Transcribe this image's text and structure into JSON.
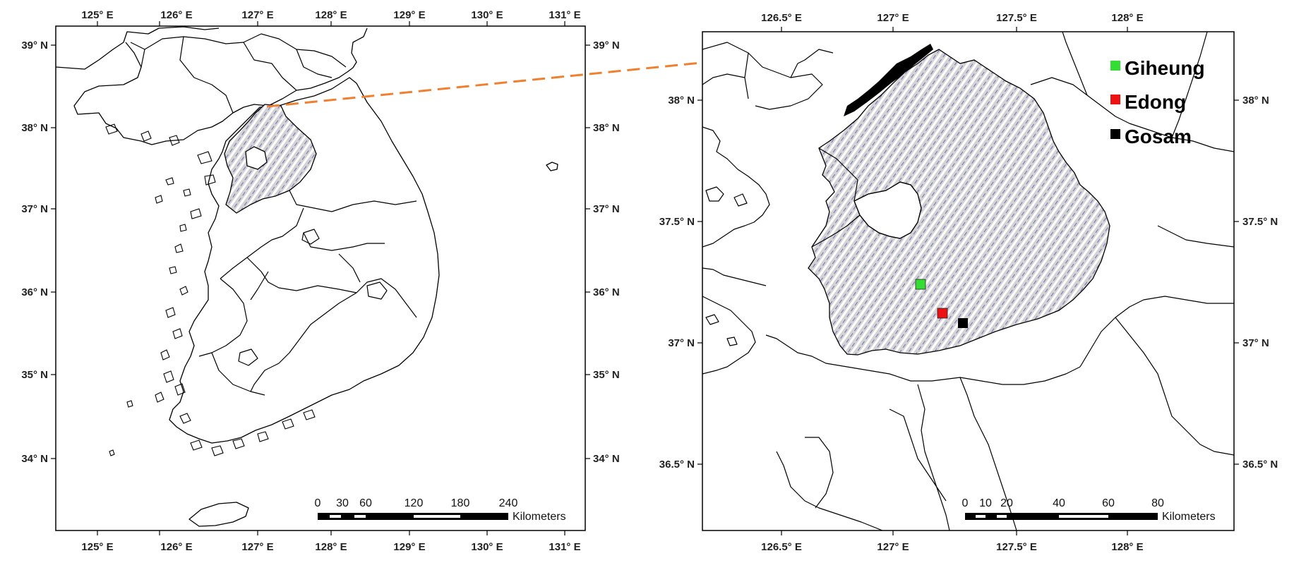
{
  "left_map": {
    "x_ticks": [
      "125° E",
      "126° E",
      "127° E",
      "128° E",
      "129° E",
      "130° E",
      "131° E"
    ],
    "y_ticks": [
      "39° N",
      "38° N",
      "37° N",
      "36° N",
      "35° N",
      "34° N"
    ],
    "scale_labels": [
      "0",
      "30",
      "60",
      "120",
      "180",
      "240"
    ],
    "scale_unit": "Kilometers"
  },
  "right_map": {
    "x_ticks": [
      "126.5° E",
      "127° E",
      "127.5° E",
      "128° E"
    ],
    "y_ticks_left": [
      "38° N",
      "37.5° N",
      "37° N",
      "36.5° N"
    ],
    "y_ticks_right": [
      "38° N",
      "37.5° N",
      "37° N",
      "36.5° N"
    ],
    "scale_labels": [
      "0",
      "10",
      "20",
      "40",
      "60",
      "80"
    ],
    "scale_unit": "Kilometers"
  },
  "legend": [
    {
      "label": "Giheung",
      "color": "#33dd33"
    },
    {
      "label": "Edong",
      "color": "#ee1111"
    },
    {
      "label": "Gosam",
      "color": "#000000"
    }
  ],
  "sites": [
    {
      "name": "Giheung",
      "color": "#33dd33",
      "lon": 127.1,
      "lat": 37.25
    },
    {
      "name": "Edong",
      "color": "#ee1111",
      "lon": 127.19,
      "lat": 37.12
    },
    {
      "name": "Gosam",
      "color": "#000000",
      "lon": 127.28,
      "lat": 37.08
    }
  ],
  "colors": {
    "hatch_fill": "#d3d3d3",
    "hatch_line": "#ffffff",
    "hatch_accent": "#7777bb",
    "connector": "#f08030"
  }
}
